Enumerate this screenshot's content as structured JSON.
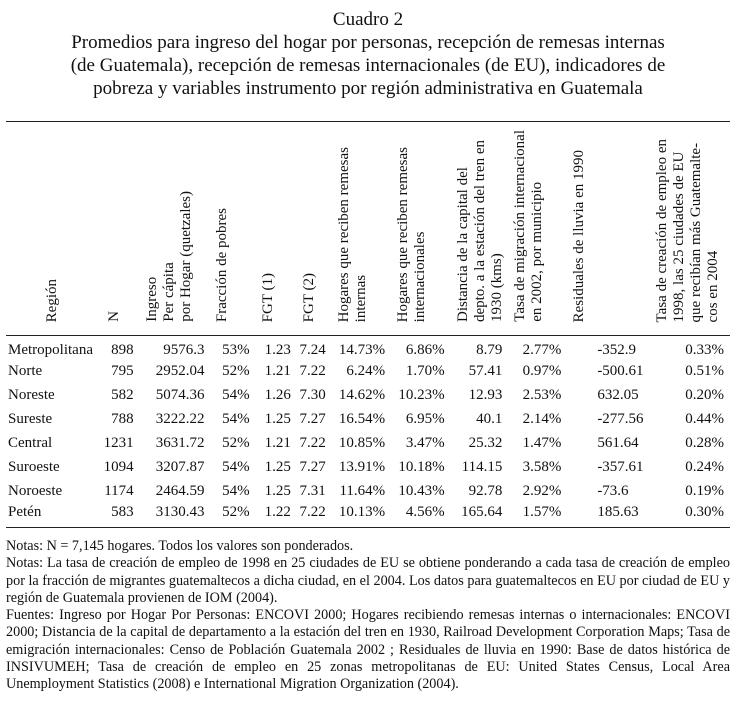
{
  "title": {
    "line1": "Cuadro 2",
    "line2": "Promedios para ingreso del hogar por personas, recepción de remesas internas",
    "line3": "(de Guatemala), recepción de remesas internacionales (de EU), indicadores de",
    "line4": "pobreza y variables instrumento por región administrativa en Guatemala"
  },
  "headers": [
    "Región",
    "N",
    "Ingreso\nPer cápita\npor Hogar (quetzales)",
    "Fracción de pobres",
    "FGT (1)",
    "FGT (2)",
    "Hogares que reciben remesas\ninternas",
    "Hogares que reciben remesas\ninternacionales",
    "Distancia de la capital del\ndepto. a la estación del tren en\n1930 (kms)",
    "Tasa de migración internacional\nen 2002, por municipio",
    "Residuales de lluvia en 1990",
    "Tasa de creación de empleo en\n1998, las 25 ciudades de EU\nque recibían más Guatemalte-\ncos en 2004"
  ],
  "rows": [
    [
      "Metropolitana",
      "898",
      "9576.3",
      "53%",
      "1.23",
      "7.24",
      "14.73%",
      "6.86%",
      "8.79",
      "2.77%",
      "-352.9",
      "0.33%"
    ],
    [
      "Norte",
      "795",
      "2952.04",
      "52%",
      "1.21",
      "7.22",
      "6.24%",
      "1.70%",
      "57.41",
      "0.97%",
      "-500.61",
      "0.51%"
    ],
    [
      "Noreste",
      "582",
      "5074.36",
      "54%",
      "1.26",
      "7.30",
      "14.62%",
      "10.23%",
      "12.93",
      "2.53%",
      "632.05",
      "0.20%"
    ],
    [
      "Sureste",
      "788",
      "3222.22",
      "54%",
      "1.25",
      "7.27",
      "16.54%",
      "6.95%",
      "40.1",
      "2.14%",
      "-277.56",
      "0.44%"
    ],
    [
      "Central",
      "1231",
      "3631.72",
      "52%",
      "1.21",
      "7.22",
      "10.85%",
      "3.47%",
      "25.32",
      "1.47%",
      "561.64",
      "0.28%"
    ],
    [
      "Suroeste",
      "1094",
      "3207.87",
      "54%",
      "1.25",
      "7.27",
      "13.91%",
      "10.18%",
      "114.15",
      "3.58%",
      "-357.61",
      "0.24%"
    ],
    [
      "Noroeste",
      "1174",
      "2464.59",
      "54%",
      "1.25",
      "7.31",
      "11.64%",
      "10.43%",
      "92.78",
      "2.92%",
      "-73.6",
      "0.19%"
    ],
    [
      "Petén",
      "583",
      "3130.43",
      "52%",
      "1.22",
      "7.22",
      "10.13%",
      "4.56%",
      "165.64",
      "1.57%",
      "185.63",
      "0.30%"
    ]
  ],
  "notes": [
    "Notas: N = 7,145 hogares. Todos los valores son ponderados.",
    "Notas: La tasa de creación de empleo de 1998 en 25 ciudades de EU se obtiene ponderando a cada tasa de creación de empleo por la fracción de migrantes guatemaltecos a dicha ciudad, en el 2004. Los datos para guatemaltecos en EU por ciudad de EU y región de Guatemala provienen de  IOM (2004).",
    "Fuentes:  Ingreso por Hogar Por Personas: ENCOVI 2000; Hogares recibiendo remesas internas o internacionales: ENCOVI 2000; Distancia de la capital de departamento a la estación del tren en 1930, Railroad Development Corporation Maps; Tasa de emigración internacionales: Censo de Población Guatemala 2002 ; Residuales de lluvia en 1990:  Base de datos histórica de INSIVUMEH; Tasa de creación de empleo en 25 zonas metropolitanas de EU: United States Census, Local Area Unemployment Statistics (2008) e International Migration Organization (2004)."
  ]
}
